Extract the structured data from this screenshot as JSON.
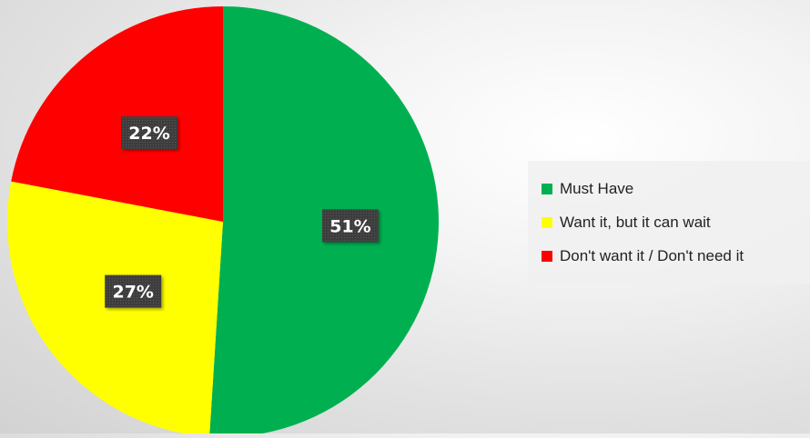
{
  "chart_data": {
    "type": "pie",
    "categories": [
      "Must Have",
      "Want it, but it can wait",
      "Don't want it / Don't need it"
    ],
    "values": [
      51,
      27,
      22
    ],
    "data_labels": [
      "51%",
      "27%",
      "22%"
    ],
    "colors": [
      "#00b050",
      "#ffff00",
      "#ff0000"
    ],
    "title": "",
    "legend_position": "right"
  }
}
